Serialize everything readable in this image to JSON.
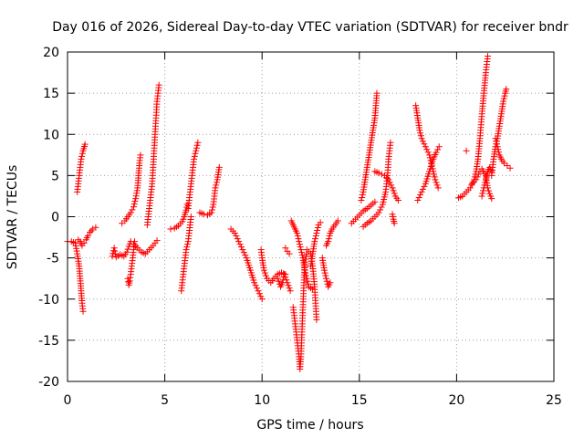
{
  "chart_data": {
    "type": "scatter",
    "title": "Day 016 of 2026, Sidereal Day-to-day VTEC variation (SDTVAR) for receiver bndr",
    "xlabel": "GPS time / hours",
    "ylabel": "SDTVAR / TECUs",
    "xlim": [
      0,
      25
    ],
    "ylim": [
      -20,
      20
    ],
    "xticks": [
      0,
      5,
      10,
      15,
      20,
      25
    ],
    "yticks": [
      -20,
      -15,
      -10,
      -5,
      0,
      5,
      10,
      15,
      20
    ],
    "grid": true,
    "marker": "+",
    "color": "#ff0000",
    "series": [
      {
        "points": [
          [
            0,
            -3.0
          ],
          [
            0.2,
            -3.0
          ],
          [
            0.4,
            -3.2
          ],
          [
            0.5,
            -4.5
          ],
          [
            0.6,
            -6.0
          ],
          [
            0.65,
            -7.5
          ],
          [
            0.7,
            -9.0
          ],
          [
            0.75,
            -10.5
          ],
          [
            0.8,
            -11.5
          ]
        ]
      },
      {
        "points": [
          [
            0.55,
            -2.8
          ],
          [
            0.65,
            -3.0
          ],
          [
            0.75,
            -3.5
          ],
          [
            0.85,
            -3.2
          ],
          [
            0.95,
            -2.8
          ],
          [
            1.05,
            -2.3
          ],
          [
            1.15,
            -1.9
          ],
          [
            1.3,
            -1.5
          ],
          [
            1.45,
            -1.3
          ]
        ]
      },
      {
        "points": [
          [
            0.5,
            3.0
          ],
          [
            0.55,
            4.0
          ],
          [
            0.6,
            5.0
          ],
          [
            0.65,
            6.0
          ],
          [
            0.7,
            7.0
          ],
          [
            0.8,
            8.0
          ],
          [
            0.9,
            8.8
          ]
        ]
      },
      {
        "points": [
          [
            2.3,
            -4.8
          ],
          [
            2.4,
            -3.8
          ],
          [
            2.5,
            -4.9
          ],
          [
            2.7,
            -4.6
          ],
          [
            2.9,
            -4.8
          ],
          [
            3.05,
            -4.3
          ],
          [
            3.15,
            -3.6
          ],
          [
            3.25,
            -3.0
          ]
        ]
      },
      {
        "points": [
          [
            2.8,
            -0.8
          ],
          [
            2.95,
            -0.5
          ],
          [
            3.1,
            0
          ],
          [
            3.25,
            0.5
          ],
          [
            3.4,
            1.2
          ],
          [
            3.5,
            2.2
          ],
          [
            3.6,
            3.5
          ],
          [
            3.65,
            5.0
          ],
          [
            3.7,
            6.5
          ],
          [
            3.75,
            7.5
          ]
        ]
      },
      {
        "points": [
          [
            3.1,
            -7.5
          ],
          [
            3.15,
            -8.3
          ],
          [
            3.2,
            -7.8
          ],
          [
            3.25,
            -7.0
          ],
          [
            3.3,
            -6.0
          ],
          [
            3.35,
            -5.0
          ],
          [
            3.4,
            -4.0
          ],
          [
            3.45,
            -3.0
          ]
        ]
      },
      {
        "points": [
          [
            3.4,
            -3.3
          ],
          [
            3.6,
            -3.8
          ],
          [
            3.8,
            -4.3
          ],
          [
            4.0,
            -4.5
          ],
          [
            4.2,
            -4.0
          ],
          [
            4.4,
            -3.5
          ],
          [
            4.6,
            -2.9
          ]
        ]
      },
      {
        "points": [
          [
            4.1,
            -1.0
          ],
          [
            4.15,
            0
          ],
          [
            4.2,
            1.0
          ],
          [
            4.25,
            2.0
          ],
          [
            4.35,
            4.0
          ],
          [
            4.4,
            6.0
          ],
          [
            4.45,
            8.0
          ],
          [
            4.5,
            10.0
          ],
          [
            4.55,
            12.0
          ],
          [
            4.6,
            14.0
          ],
          [
            4.7,
            16.0
          ]
        ]
      },
      {
        "points": [
          [
            5.3,
            -1.5
          ],
          [
            5.5,
            -1.4
          ],
          [
            5.7,
            -1.1
          ],
          [
            5.9,
            -0.6
          ],
          [
            6.0,
            0
          ],
          [
            6.1,
            0.8
          ],
          [
            6.15,
            1.5
          ]
        ]
      },
      {
        "points": [
          [
            5.85,
            -9.0
          ],
          [
            5.9,
            -8.0
          ],
          [
            5.95,
            -7.0
          ],
          [
            6.0,
            -6.0
          ],
          [
            6.05,
            -5.0
          ],
          [
            6.1,
            -4.0
          ],
          [
            6.2,
            -3.0
          ],
          [
            6.25,
            -2.0
          ],
          [
            6.3,
            -1.0
          ],
          [
            6.35,
            0
          ]
        ]
      },
      {
        "points": [
          [
            6.2,
            1.0
          ],
          [
            6.25,
            2.0
          ],
          [
            6.3,
            3.0
          ],
          [
            6.35,
            4.0
          ],
          [
            6.4,
            5.0
          ],
          [
            6.45,
            6.0
          ],
          [
            6.5,
            7.0
          ],
          [
            6.6,
            8.0
          ],
          [
            6.7,
            9.0
          ]
        ]
      },
      {
        "points": [
          [
            6.8,
            0.5
          ],
          [
            7.0,
            0.3
          ],
          [
            7.2,
            0.2
          ],
          [
            7.4,
            0.5
          ],
          [
            7.5,
            1.5
          ],
          [
            7.55,
            2.5
          ],
          [
            7.6,
            3.5
          ],
          [
            7.7,
            4.5
          ],
          [
            7.8,
            6.0
          ]
        ]
      },
      {
        "points": [
          [
            8.4,
            -1.5
          ],
          [
            8.6,
            -2.0
          ],
          [
            8.8,
            -3.0
          ],
          [
            9.0,
            -4.0
          ],
          [
            9.2,
            -5.0
          ],
          [
            9.4,
            -6.5
          ],
          [
            9.6,
            -8.0
          ],
          [
            9.8,
            -9.0
          ],
          [
            10.0,
            -10.0
          ]
        ]
      },
      {
        "points": [
          [
            9.95,
            -4.0
          ],
          [
            10.0,
            -5.0
          ],
          [
            10.1,
            -6.5
          ],
          [
            10.25,
            -7.5
          ],
          [
            10.45,
            -8.0
          ],
          [
            10.6,
            -7.5
          ],
          [
            10.8,
            -7.0
          ],
          [
            11.0,
            -6.8
          ],
          [
            11.2,
            -7.0
          ]
        ]
      },
      {
        "points": [
          [
            10.8,
            -7.5
          ],
          [
            10.95,
            -8.5
          ],
          [
            11.05,
            -8.0
          ],
          [
            11.15,
            -7.0
          ],
          [
            11.3,
            -8.0
          ],
          [
            11.45,
            -9.0
          ]
        ]
      },
      {
        "points": [
          [
            11.2,
            -3.8
          ],
          [
            11.3,
            -4.2
          ],
          [
            11.4,
            -4.5
          ]
        ]
      },
      {
        "points": [
          [
            11.5,
            -0.5
          ],
          [
            11.6,
            -1.0
          ],
          [
            11.7,
            -1.5
          ],
          [
            11.8,
            -2.0
          ],
          [
            11.9,
            -3.0
          ],
          [
            12.0,
            -4.0
          ],
          [
            12.1,
            -5.0
          ],
          [
            12.2,
            -6.5
          ],
          [
            12.3,
            -7.5
          ],
          [
            12.4,
            -8.5
          ],
          [
            12.6,
            -8.8
          ]
        ]
      },
      {
        "points": [
          [
            11.6,
            -11.0
          ],
          [
            11.7,
            -13.0
          ],
          [
            11.8,
            -15.0
          ],
          [
            11.9,
            -17.0
          ],
          [
            11.95,
            -18.5
          ],
          [
            12.0,
            -17.0
          ],
          [
            12.05,
            -14.0
          ],
          [
            12.1,
            -11.0
          ],
          [
            12.15,
            -8.0
          ],
          [
            12.2,
            -5.5
          ],
          [
            12.3,
            -4.5
          ]
        ]
      },
      {
        "points": [
          [
            12.3,
            -4.0
          ],
          [
            12.5,
            -4.5
          ],
          [
            12.6,
            -6.0
          ],
          [
            12.7,
            -8.5
          ],
          [
            12.75,
            -10.5
          ],
          [
            12.8,
            -12.5
          ]
        ]
      },
      {
        "points": [
          [
            12.5,
            -6.0
          ],
          [
            12.6,
            -4.5
          ],
          [
            12.7,
            -3.0
          ],
          [
            12.8,
            -2.0
          ],
          [
            12.9,
            -1.0
          ],
          [
            13.0,
            -0.7
          ]
        ]
      },
      {
        "points": [
          [
            13.1,
            -5.0
          ],
          [
            13.2,
            -6.5
          ],
          [
            13.3,
            -7.5
          ],
          [
            13.4,
            -8.5
          ],
          [
            13.5,
            -8.0
          ]
        ]
      },
      {
        "points": [
          [
            13.3,
            -3.5
          ],
          [
            13.4,
            -3.0
          ],
          [
            13.5,
            -2.0
          ],
          [
            13.6,
            -1.5
          ],
          [
            13.75,
            -1.0
          ],
          [
            13.9,
            -0.5
          ]
        ]
      },
      {
        "points": [
          [
            14.6,
            -0.8
          ],
          [
            14.8,
            -0.3
          ],
          [
            15.0,
            0.2
          ],
          [
            15.2,
            0.7
          ],
          [
            15.4,
            1.0
          ],
          [
            15.6,
            1.4
          ],
          [
            15.8,
            1.8
          ]
        ]
      },
      {
        "points": [
          [
            15.1,
            2.0
          ],
          [
            15.2,
            3.0
          ],
          [
            15.3,
            4.5
          ],
          [
            15.4,
            6.0
          ],
          [
            15.5,
            7.5
          ],
          [
            15.6,
            9.0
          ],
          [
            15.7,
            10.5
          ],
          [
            15.8,
            12.0
          ],
          [
            15.85,
            13.5
          ],
          [
            15.9,
            15.0
          ]
        ]
      },
      {
        "points": [
          [
            15.2,
            -1.2
          ],
          [
            15.4,
            -0.8
          ],
          [
            15.6,
            -0.5
          ],
          [
            15.8,
            0
          ],
          [
            16.0,
            0.5
          ],
          [
            16.2,
            1.5
          ],
          [
            16.35,
            3.0
          ],
          [
            16.45,
            5.0
          ],
          [
            16.5,
            7.0
          ],
          [
            16.6,
            9.0
          ]
        ]
      },
      {
        "points": [
          [
            15.8,
            5.5
          ],
          [
            16.0,
            5.3
          ],
          [
            16.3,
            5.0
          ],
          [
            16.5,
            4.5
          ],
          [
            16.7,
            3.5
          ],
          [
            16.85,
            2.5
          ],
          [
            17.0,
            2.0
          ]
        ]
      },
      {
        "points": [
          [
            16.7,
            0.3
          ],
          [
            16.75,
            -0.3
          ],
          [
            16.8,
            -0.8
          ]
        ]
      },
      {
        "points": [
          [
            17.9,
            13.5
          ],
          [
            18.0,
            12.0
          ],
          [
            18.1,
            10.5
          ],
          [
            18.2,
            9.5
          ],
          [
            18.4,
            8.5
          ],
          [
            18.6,
            7.5
          ],
          [
            18.8,
            5.5
          ],
          [
            18.9,
            4.5
          ],
          [
            19.05,
            3.5
          ]
        ]
      },
      {
        "points": [
          [
            18.0,
            2.0
          ],
          [
            18.2,
            3.0
          ],
          [
            18.4,
            4.0
          ],
          [
            18.6,
            5.5
          ],
          [
            18.8,
            7.0
          ],
          [
            18.95,
            7.8
          ],
          [
            19.1,
            8.5
          ]
        ]
      },
      {
        "points": [
          [
            20.1,
            2.3
          ],
          [
            20.3,
            2.5
          ],
          [
            20.5,
            3.0
          ],
          [
            20.7,
            3.5
          ],
          [
            20.9,
            4.5
          ],
          [
            21.0,
            5.5
          ],
          [
            21.1,
            7.0
          ],
          [
            21.2,
            9.5
          ],
          [
            21.3,
            12.5
          ],
          [
            21.4,
            15.0
          ],
          [
            21.5,
            17.5
          ],
          [
            21.6,
            19.5
          ]
        ]
      },
      {
        "points": [
          [
            20.5,
            8.0
          ]
        ]
      },
      {
        "points": [
          [
            20.8,
            4.0
          ],
          [
            21.0,
            4.5
          ],
          [
            21.2,
            5.5
          ],
          [
            21.3,
            5.8
          ],
          [
            21.5,
            5.0
          ],
          [
            21.6,
            3.5
          ],
          [
            21.7,
            2.8
          ],
          [
            21.8,
            2.2
          ]
        ]
      },
      {
        "points": [
          [
            21.3,
            2.5
          ],
          [
            21.4,
            3.5
          ],
          [
            21.5,
            4.5
          ],
          [
            21.6,
            5.5
          ],
          [
            21.7,
            6.0
          ],
          [
            21.8,
            5.5
          ]
        ]
      },
      {
        "points": [
          [
            21.8,
            5.0
          ],
          [
            21.9,
            7.0
          ],
          [
            22.0,
            8.5
          ],
          [
            22.1,
            9.5
          ],
          [
            22.2,
            11.0
          ],
          [
            22.3,
            12.5
          ],
          [
            22.4,
            14.0
          ],
          [
            22.5,
            15.0
          ],
          [
            22.55,
            15.5
          ]
        ]
      },
      {
        "points": [
          [
            22.0,
            9.5
          ],
          [
            22.1,
            8.5
          ],
          [
            22.2,
            7.5
          ],
          [
            22.3,
            7.0
          ],
          [
            22.45,
            6.5
          ],
          [
            22.6,
            6.2
          ],
          [
            22.75,
            5.9
          ]
        ]
      }
    ]
  }
}
